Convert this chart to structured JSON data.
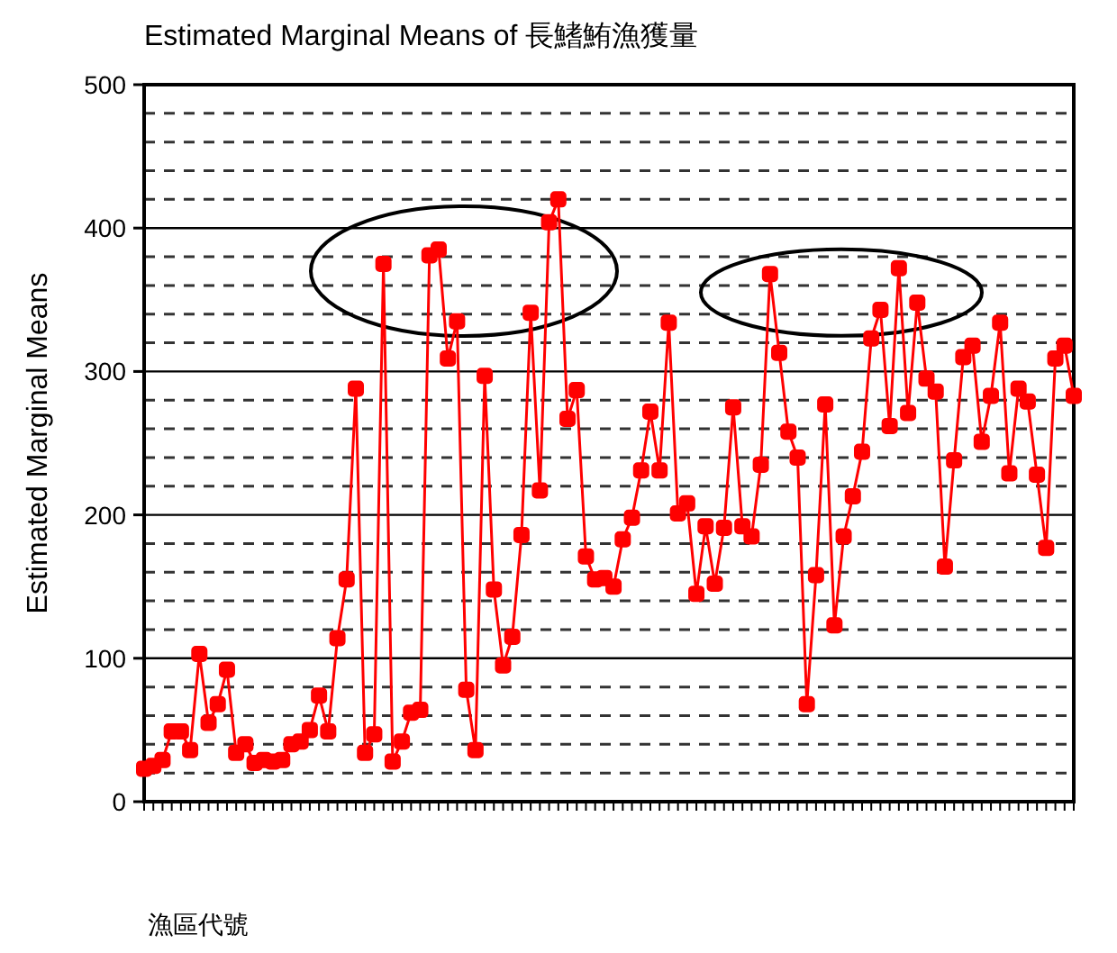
{
  "chart_data": {
    "type": "line",
    "title": "Estimated Marginal Means of 長鰭鮪漁獲量",
    "xlabel": "漁區代號",
    "ylabel": "Estimated Marginal Means",
    "categories": [
      null,
      null,
      null,
      null,
      null,
      null,
      null,
      null,
      null,
      null,
      null,
      null,
      null,
      null,
      null,
      null,
      null,
      null,
      null,
      null,
      null,
      null,
      null,
      null,
      null,
      null,
      null,
      null,
      null,
      null,
      null,
      null,
      null,
      null,
      null,
      null,
      null,
      null,
      null,
      null,
      null,
      null,
      null,
      null,
      null,
      null,
      null,
      null,
      null,
      null,
      null,
      null,
      null,
      null,
      null,
      null,
      null,
      null,
      null,
      null,
      null,
      null,
      null,
      null,
      null,
      null,
      null,
      null,
      null,
      null,
      null,
      null,
      null,
      null,
      null,
      null,
      null,
      null,
      null,
      null,
      null,
      null,
      null,
      null,
      null,
      null,
      null,
      null,
      null,
      null,
      null,
      null,
      null,
      null,
      null,
      null,
      null,
      null,
      null,
      null,
      null,
      null
    ],
    "series": [
      {
        "color": "#ff0000",
        "values": [
          23,
          25,
          29,
          49,
          49,
          36,
          103,
          55,
          68,
          92,
          34,
          40,
          27,
          29,
          28,
          29,
          40,
          42,
          50,
          74,
          49,
          114,
          155,
          288,
          34,
          47,
          375,
          28,
          42,
          62,
          64,
          381,
          385,
          309,
          335,
          78,
          36,
          297,
          148,
          95,
          115,
          186,
          341,
          217,
          404,
          420,
          267,
          287,
          171,
          155,
          156,
          150,
          183,
          198,
          231,
          272,
          231,
          334,
          201,
          208,
          145,
          192,
          152,
          191,
          275,
          192,
          185,
          235,
          368,
          313,
          258,
          240,
          68,
          158,
          277,
          123,
          185,
          213,
          244,
          323,
          343,
          262,
          372,
          271,
          348,
          295,
          286,
          164,
          238,
          310,
          318,
          251,
          283,
          334,
          229,
          288,
          279,
          228,
          177,
          309,
          318,
          283
        ]
      }
    ],
    "ylim": [
      0,
      500
    ],
    "yticks": [
      0,
      {
        "value": 20,
        "label": null
      },
      {
        "value": 40,
        "label": null
      },
      {
        "value": 60,
        "label": null
      },
      {
        "value": 80,
        "label": null
      },
      100,
      {
        "value": 120,
        "label": null
      },
      {
        "value": 140,
        "label": null
      },
      {
        "value": 160,
        "label": null
      },
      {
        "value": 180,
        "label": null
      },
      200,
      {
        "value": 220,
        "label": null
      },
      {
        "value": 240,
        "label": null
      },
      {
        "value": 260,
        "label": null
      },
      {
        "value": 280,
        "label": null
      },
      300,
      {
        "value": 320,
        "label": null
      },
      {
        "value": 340,
        "label": null
      },
      {
        "value": 360,
        "label": null
      },
      {
        "value": 380,
        "label": null
      },
      400,
      {
        "value": 420,
        "label": null
      },
      {
        "value": 440,
        "label": null
      },
      {
        "value": 460,
        "label": null
      },
      {
        "value": 480,
        "label": null
      },
      500
    ],
    "grid": "y",
    "marker": "square",
    "line_style": "solid"
  }
}
